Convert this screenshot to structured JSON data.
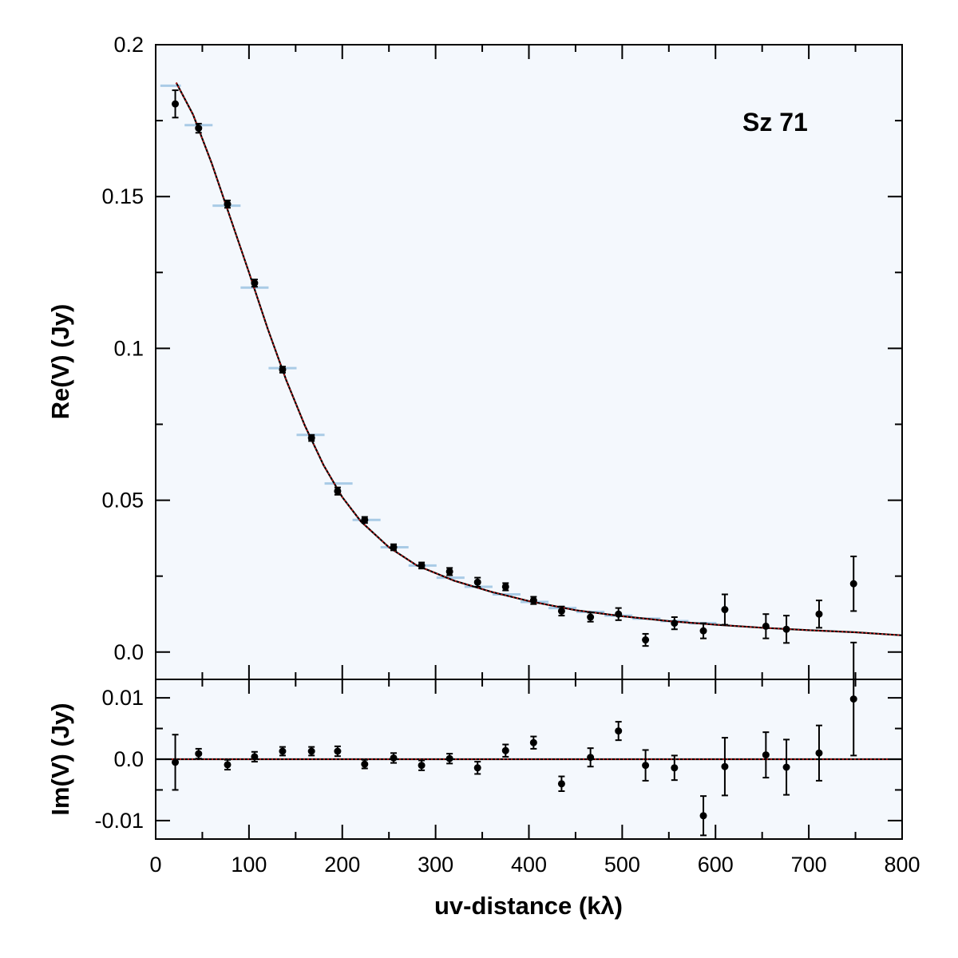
{
  "chart_data": {
    "type": "scatter",
    "annotation": "Sz 71",
    "xlabel": "uv-distance (kλ)",
    "xlim": [
      0,
      800
    ],
    "x_ticks": [
      0,
      100,
      200,
      300,
      400,
      500,
      600,
      700,
      800
    ],
    "x_tick_labels": [
      "0",
      "100",
      "200",
      "300",
      "400",
      "500",
      "600",
      "700",
      "800"
    ],
    "panels": [
      {
        "id": "re",
        "ylabel": "Re(V) (Jy)",
        "ylim": [
          -0.009,
          0.2
        ],
        "y_ticks": [
          0.0,
          0.05,
          0.1,
          0.15,
          0.2
        ],
        "y_tick_labels": [
          "0.0",
          "0.05",
          "0.1",
          "0.15",
          "0.2"
        ],
        "points": [
          {
            "x": 21,
            "y": 0.1805,
            "err": 0.0045
          },
          {
            "x": 46,
            "y": 0.1725,
            "err": 0.0015
          },
          {
            "x": 77,
            "y": 0.1475,
            "err": 0.0012
          },
          {
            "x": 106,
            "y": 0.1215,
            "err": 0.0012
          },
          {
            "x": 136,
            "y": 0.093,
            "err": 0.001
          },
          {
            "x": 167,
            "y": 0.0705,
            "err": 0.001
          },
          {
            "x": 195,
            "y": 0.053,
            "err": 0.0012
          },
          {
            "x": 224,
            "y": 0.0435,
            "err": 0.001
          },
          {
            "x": 255,
            "y": 0.0345,
            "err": 0.001
          },
          {
            "x": 285,
            "y": 0.0285,
            "err": 0.001
          },
          {
            "x": 315,
            "y": 0.0265,
            "err": 0.0012
          },
          {
            "x": 345,
            "y": 0.023,
            "err": 0.0015
          },
          {
            "x": 375,
            "y": 0.0215,
            "err": 0.0012
          },
          {
            "x": 405,
            "y": 0.017,
            "err": 0.0012
          },
          {
            "x": 435,
            "y": 0.0135,
            "err": 0.0015
          },
          {
            "x": 466,
            "y": 0.0115,
            "err": 0.0015
          },
          {
            "x": 496,
            "y": 0.0125,
            "err": 0.002
          },
          {
            "x": 525,
            "y": 0.004,
            "err": 0.002
          },
          {
            "x": 556,
            "y": 0.0095,
            "err": 0.002
          },
          {
            "x": 587,
            "y": 0.007,
            "err": 0.0025
          },
          {
            "x": 610,
            "y": 0.014,
            "err": 0.005
          },
          {
            "x": 654,
            "y": 0.0085,
            "err": 0.004
          },
          {
            "x": 676,
            "y": 0.0075,
            "err": 0.0045
          },
          {
            "x": 711,
            "y": 0.0125,
            "err": 0.0045
          },
          {
            "x": 748,
            "y": 0.0225,
            "err": 0.009
          }
        ],
        "model_bins": [
          {
            "x0": 5,
            "x1": 27,
            "y": 0.1865
          },
          {
            "x0": 31,
            "y": 0.1735,
            "x1": 61
          },
          {
            "x0": 61,
            "x1": 91,
            "y": 0.147
          },
          {
            "x0": 91,
            "x1": 121,
            "y": 0.12
          },
          {
            "x0": 121,
            "x1": 151,
            "y": 0.0935
          },
          {
            "x0": 151,
            "x1": 181,
            "y": 0.0715
          },
          {
            "x0": 181,
            "x1": 211,
            "y": 0.0555
          },
          {
            "x0": 211,
            "x1": 241,
            "y": 0.0435
          },
          {
            "x0": 241,
            "x1": 271,
            "y": 0.0345
          },
          {
            "x0": 271,
            "x1": 301,
            "y": 0.0285
          },
          {
            "x0": 301,
            "x1": 331,
            "y": 0.0245
          },
          {
            "x0": 331,
            "x1": 361,
            "y": 0.0215
          },
          {
            "x0": 361,
            "x1": 391,
            "y": 0.019
          },
          {
            "x0": 391,
            "x1": 421,
            "y": 0.0165
          },
          {
            "x0": 421,
            "x1": 451,
            "y": 0.0145
          },
          {
            "x0": 451,
            "x1": 481,
            "y": 0.0132
          },
          {
            "x0": 481,
            "x1": 511,
            "y": 0.012
          },
          {
            "x0": 511,
            "x1": 541,
            "y": 0.011
          },
          {
            "x0": 541,
            "x1": 571,
            "y": 0.0102
          },
          {
            "x0": 571,
            "x1": 601,
            "y": 0.0095
          }
        ],
        "model_curve": [
          {
            "x": 22,
            "y": 0.1875
          },
          {
            "x": 40,
            "y": 0.177
          },
          {
            "x": 60,
            "y": 0.161
          },
          {
            "x": 80,
            "y": 0.143
          },
          {
            "x": 100,
            "y": 0.125
          },
          {
            "x": 120,
            "y": 0.1065
          },
          {
            "x": 140,
            "y": 0.0895
          },
          {
            "x": 160,
            "y": 0.0745
          },
          {
            "x": 180,
            "y": 0.0615
          },
          {
            "x": 200,
            "y": 0.051
          },
          {
            "x": 220,
            "y": 0.043
          },
          {
            "x": 250,
            "y": 0.0345
          },
          {
            "x": 280,
            "y": 0.0285
          },
          {
            "x": 320,
            "y": 0.0235
          },
          {
            "x": 360,
            "y": 0.0198
          },
          {
            "x": 400,
            "y": 0.0168
          },
          {
            "x": 450,
            "y": 0.0138
          },
          {
            "x": 500,
            "y": 0.0118
          },
          {
            "x": 550,
            "y": 0.0102
          },
          {
            "x": 600,
            "y": 0.009
          },
          {
            "x": 650,
            "y": 0.008
          },
          {
            "x": 700,
            "y": 0.0072
          },
          {
            "x": 750,
            "y": 0.0065
          },
          {
            "x": 800,
            "y": 0.0055
          }
        ]
      },
      {
        "id": "im",
        "ylabel": "Im(V) (Jy)",
        "ylim": [
          -0.013,
          0.013
        ],
        "y_ticks": [
          -0.01,
          0.0,
          0.01
        ],
        "y_tick_labels": [
          "-0.01",
          "0.0",
          "0.01"
        ],
        "points": [
          {
            "x": 21,
            "y": -0.0005,
            "err": 0.0045
          },
          {
            "x": 46,
            "y": 0.0009,
            "err": 0.0008
          },
          {
            "x": 77,
            "y": -0.0009,
            "err": 0.0008
          },
          {
            "x": 106,
            "y": 0.0004,
            "err": 0.0008
          },
          {
            "x": 136,
            "y": 0.0013,
            "err": 0.0007
          },
          {
            "x": 167,
            "y": 0.0013,
            "err": 0.0007
          },
          {
            "x": 195,
            "y": 0.0013,
            "err": 0.0008
          },
          {
            "x": 224,
            "y": -0.0008,
            "err": 0.0007
          },
          {
            "x": 255,
            "y": 0.0002,
            "err": 0.0008
          },
          {
            "x": 285,
            "y": -0.001,
            "err": 0.0008
          },
          {
            "x": 315,
            "y": 0.0001,
            "err": 0.0008
          },
          {
            "x": 345,
            "y": -0.0014,
            "err": 0.001
          },
          {
            "x": 375,
            "y": 0.0014,
            "err": 0.001
          },
          {
            "x": 405,
            "y": 0.0027,
            "err": 0.001
          },
          {
            "x": 435,
            "y": -0.004,
            "err": 0.0012
          },
          {
            "x": 466,
            "y": 0.0003,
            "err": 0.0015
          },
          {
            "x": 496,
            "y": 0.0046,
            "err": 0.0015
          },
          {
            "x": 525,
            "y": -0.001,
            "err": 0.0025
          },
          {
            "x": 556,
            "y": -0.0014,
            "err": 0.002
          },
          {
            "x": 587,
            "y": -0.0092,
            "err": 0.0032
          },
          {
            "x": 610,
            "y": -0.0012,
            "err": 0.0047
          },
          {
            "x": 654,
            "y": 0.0007,
            "err": 0.0037
          },
          {
            "x": 676,
            "y": -0.0013,
            "err": 0.0045
          },
          {
            "x": 711,
            "y": 0.001,
            "err": 0.0045
          },
          {
            "x": 748,
            "y": 0.0098,
            "err": 0.0092
          }
        ],
        "model_curve": [
          {
            "x": 0,
            "y": 0.0
          },
          {
            "x": 800,
            "y": 0.0
          }
        ]
      }
    ]
  }
}
